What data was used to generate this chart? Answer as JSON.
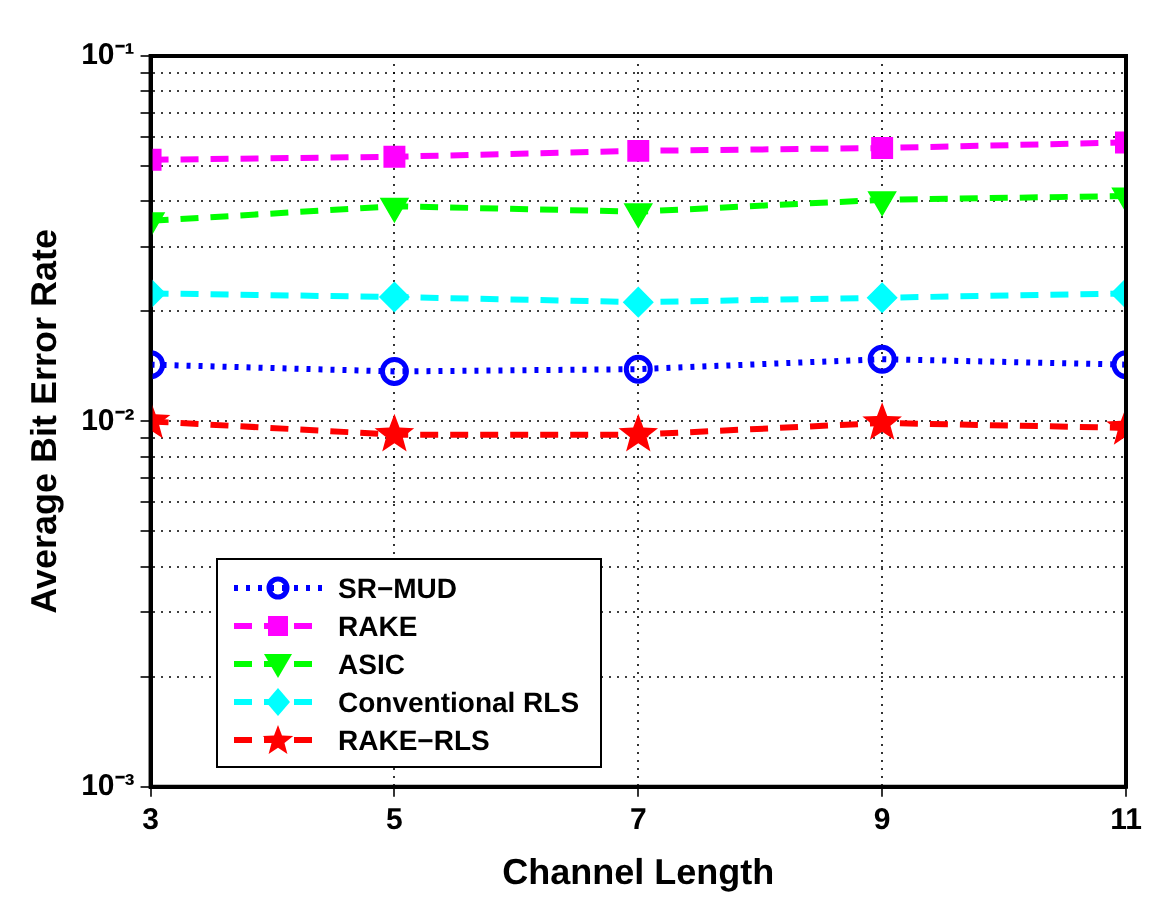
{
  "chart_data": {
    "type": "line",
    "xlabel": "Channel Length",
    "ylabel": "Average Bit Error Rate",
    "x": [
      3,
      5,
      7,
      9,
      11
    ],
    "xlim": [
      3,
      11
    ],
    "xticks": [
      3,
      5,
      7,
      9,
      11
    ],
    "ylim": [
      0.001,
      0.1
    ],
    "log": "y",
    "yticks": [
      {
        "value": 0.001,
        "label": "10⁻³"
      },
      {
        "value": 0.002,
        "label": null
      },
      {
        "value": 0.003,
        "label": null
      },
      {
        "value": 0.004,
        "label": null
      },
      {
        "value": 0.005,
        "label": null
      },
      {
        "value": 0.006,
        "label": null
      },
      {
        "value": 0.007,
        "label": null
      },
      {
        "value": 0.008,
        "label": null
      },
      {
        "value": 0.009,
        "label": null
      },
      {
        "value": 0.01,
        "label": "10⁻²"
      },
      {
        "value": 0.02,
        "label": null
      },
      {
        "value": 0.03,
        "label": null
      },
      {
        "value": 0.04,
        "label": null
      },
      {
        "value": 0.05,
        "label": null
      },
      {
        "value": 0.06,
        "label": null
      },
      {
        "value": 0.07,
        "label": null
      },
      {
        "value": 0.08,
        "label": null
      },
      {
        "value": 0.09,
        "label": null
      },
      {
        "value": 0.1,
        "label": "10⁻¹"
      }
    ],
    "grid": true,
    "legend": "bottom left",
    "series": [
      {
        "name": "SR−MUD",
        "color": "#0000ff",
        "marker": "circle",
        "line_style": "dotted",
        "values": [
          0.0143,
          0.0137,
          0.0139,
          0.0148,
          0.0143
        ]
      },
      {
        "name": "RAKE",
        "color": "#ff00ff",
        "marker": "square",
        "line_style": "dashed",
        "values": [
          0.052,
          0.053,
          0.055,
          0.056,
          0.058
        ]
      },
      {
        "name": "ASIC",
        "color": "#00ff00",
        "marker": "triangle",
        "line_style": "dashed",
        "values": [
          0.0354,
          0.0388,
          0.0375,
          0.0404,
          0.0414
        ]
      },
      {
        "name": "Conventional RLS",
        "color": "#00ffff",
        "marker": "diamond",
        "line_style": "dashed",
        "values": [
          0.0224,
          0.0219,
          0.0212,
          0.0218,
          0.0224
        ]
      },
      {
        "name": "RAKE−RLS",
        "color": "#ff0000",
        "marker": "star",
        "line_style": "dashed",
        "values": [
          0.01,
          0.0092,
          0.0092,
          0.0099,
          0.0096
        ]
      }
    ]
  }
}
